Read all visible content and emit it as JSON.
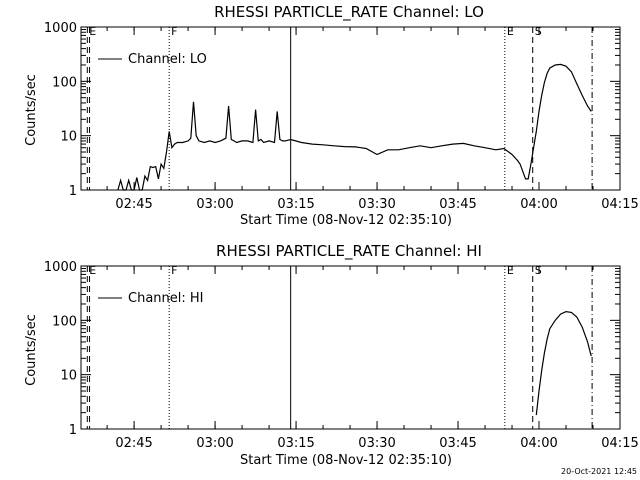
{
  "footer": {
    "date": "20-Oct-2021 12:45"
  },
  "chart_data": [
    {
      "type": "line",
      "title": "RHESSI PARTICLE_RATE Channel: LO",
      "xlabel": "Start Time (08-Nov-12 02:35:10)",
      "ylabel": "Counts/sec",
      "ylog": true,
      "ylim": [
        1,
        1000
      ],
      "xlim": [
        "02:35:10",
        "04:15:00"
      ],
      "xticks": [
        "02:45",
        "03:00",
        "03:15",
        "03:30",
        "03:45",
        "04:00",
        "04:15"
      ],
      "yticks": [
        {
          "value": 1,
          "label": "1"
        },
        {
          "value": 10,
          "label": "10"
        },
        {
          "value": 100,
          "label": "100"
        },
        {
          "value": 1000,
          "label": "1000"
        }
      ],
      "legend": {
        "entries": [
          "Channel: LO"
        ],
        "placement": "top-left"
      },
      "markers": [
        {
          "label": "E",
          "time": "02:36:20",
          "style": "dashed"
        },
        {
          "label": "",
          "time": "02:36:45",
          "style": "dashed"
        },
        {
          "label": "F",
          "time": "02:51:30",
          "style": "dotted"
        },
        {
          "label": "",
          "time": "03:14:00",
          "style": "solid"
        },
        {
          "label": "E",
          "time": "03:53:40",
          "style": "dotted"
        },
        {
          "label": "S",
          "time": "03:58:50",
          "style": "dashed"
        },
        {
          "label": "",
          "time": "04:09:50",
          "style": "dashdot"
        }
      ],
      "series": [
        {
          "name": "Channel: LO",
          "x": [
            "02:42:00",
            "02:42:30",
            "02:43:00",
            "02:43:30",
            "02:44:00",
            "02:44:30",
            "02:45:00",
            "02:45:30",
            "02:46:00",
            "02:46:30",
            "02:47:00",
            "02:47:30",
            "02:48:00",
            "02:48:30",
            "02:49:00",
            "02:49:30",
            "02:50:00",
            "02:50:30",
            "02:51:00",
            "02:51:30",
            "02:52:00",
            "02:52:30",
            "02:53:00",
            "02:54:00",
            "02:55:00",
            "02:55:30",
            "02:56:00",
            "02:56:30",
            "02:57:00",
            "02:58:00",
            "02:59:00",
            "03:00:00",
            "03:01:00",
            "03:02:00",
            "03:02:30",
            "03:03:00",
            "03:03:30",
            "03:04:00",
            "03:05:00",
            "03:06:00",
            "03:07:00",
            "03:07:30",
            "03:08:00",
            "03:08:30",
            "03:09:00",
            "03:10:00",
            "03:11:00",
            "03:11:30",
            "03:12:00",
            "03:12:30",
            "03:13:00",
            "03:14:00",
            "03:16:00",
            "03:18:00",
            "03:20:00",
            "03:22:00",
            "03:24:00",
            "03:26:00",
            "03:27:00",
            "03:28:00",
            "03:30:00",
            "03:32:00",
            "03:34:00",
            "03:36:00",
            "03:38:00",
            "03:40:00",
            "03:42:00",
            "03:44:00",
            "03:46:00",
            "03:48:00",
            "03:50:00",
            "03:52:00",
            "03:53:30",
            "03:55:00",
            "03:56:00",
            "03:56:30",
            "03:57:00",
            "03:57:30",
            "03:58:00",
            "03:58:30",
            "03:59:00",
            "03:59:30",
            "04:00:00",
            "04:00:30",
            "04:01:00",
            "04:01:30",
            "04:02:00",
            "04:03:00",
            "04:04:00",
            "04:05:00",
            "04:06:00",
            "04:07:00",
            "04:08:00",
            "04:09:00",
            "04:09:40"
          ],
          "y": [
            1,
            1.5,
            1,
            1,
            1.5,
            1,
            1,
            1.7,
            1,
            1,
            1.8,
            1.5,
            2.7,
            2.6,
            2.7,
            1.6,
            3,
            2.5,
            5,
            12,
            6,
            7,
            7.5,
            7.5,
            8,
            9,
            42,
            10,
            8,
            7.5,
            8,
            7.5,
            8,
            9,
            35,
            8.5,
            8,
            7.5,
            8,
            8,
            7.5,
            30,
            8,
            8.5,
            7.5,
            8,
            7.5,
            28,
            8.5,
            8,
            8,
            8.5,
            7.5,
            7,
            6.8,
            6.5,
            6.3,
            6.2,
            6,
            5.8,
            4.5,
            5.5,
            5.5,
            6,
            6.5,
            6,
            6.5,
            7,
            7.2,
            6.5,
            6,
            5.5,
            5.8,
            4.5,
            3.5,
            3,
            2.2,
            1.6,
            1.6,
            3,
            6,
            12,
            28,
            55,
            95,
            140,
            175,
            200,
            205,
            190,
            150,
            90,
            55,
            35,
            28
          ]
        }
      ]
    },
    {
      "type": "line",
      "title": "RHESSI PARTICLE_RATE Channel: HI",
      "xlabel": "Start Time (08-Nov-12 02:35:10)",
      "ylabel": "Counts/sec",
      "ylog": true,
      "ylim": [
        1,
        1000
      ],
      "xlim": [
        "02:35:10",
        "04:15:00"
      ],
      "xticks": [
        "02:45",
        "03:00",
        "03:15",
        "03:30",
        "03:45",
        "04:00",
        "04:15"
      ],
      "yticks": [
        {
          "value": 1,
          "label": "1"
        },
        {
          "value": 10,
          "label": "10"
        },
        {
          "value": 100,
          "label": "100"
        },
        {
          "value": 1000,
          "label": "1000"
        }
      ],
      "legend": {
        "entries": [
          "Channel: HI"
        ],
        "placement": "top-left"
      },
      "markers": [
        {
          "label": "E",
          "time": "02:36:20",
          "style": "dashed"
        },
        {
          "label": "",
          "time": "02:36:45",
          "style": "dashed"
        },
        {
          "label": "F",
          "time": "02:51:30",
          "style": "dotted"
        },
        {
          "label": "",
          "time": "03:14:00",
          "style": "solid"
        },
        {
          "label": "E",
          "time": "03:53:40",
          "style": "dotted"
        },
        {
          "label": "S",
          "time": "03:58:50",
          "style": "dashed"
        },
        {
          "label": "",
          "time": "04:09:50",
          "style": "dashdot"
        }
      ],
      "series": [
        {
          "name": "Channel: HI",
          "x": [
            "03:59:30",
            "04:00:00",
            "04:00:30",
            "04:01:00",
            "04:01:30",
            "04:02:00",
            "04:03:00",
            "04:04:00",
            "04:05:00",
            "04:06:00",
            "04:07:00",
            "04:08:00",
            "04:09:00",
            "04:09:40"
          ],
          "y": [
            1.8,
            5,
            12,
            25,
            45,
            70,
            100,
            130,
            145,
            140,
            115,
            75,
            40,
            22
          ]
        }
      ]
    }
  ]
}
